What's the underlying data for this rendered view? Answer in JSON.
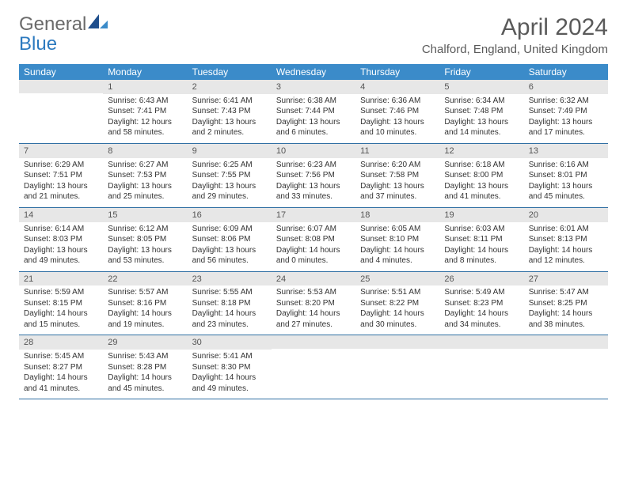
{
  "logo": {
    "line1": "General",
    "line2": "Blue"
  },
  "title": "April 2024",
  "location": "Chalford, England, United Kingdom",
  "colors": {
    "header_bg": "#3b8bc9",
    "header_fg": "#ffffff",
    "daynum_bg": "#e7e7e7",
    "rule": "#2f6fa3",
    "text": "#333333",
    "logo_gray": "#6a6a6a",
    "logo_blue": "#2c7abf"
  },
  "weekdays": [
    "Sunday",
    "Monday",
    "Tuesday",
    "Wednesday",
    "Thursday",
    "Friday",
    "Saturday"
  ],
  "weeks": [
    [
      null,
      {
        "n": "1",
        "sr": "6:43 AM",
        "ss": "7:41 PM",
        "dl": "12 hours and 58 minutes."
      },
      {
        "n": "2",
        "sr": "6:41 AM",
        "ss": "7:43 PM",
        "dl": "13 hours and 2 minutes."
      },
      {
        "n": "3",
        "sr": "6:38 AM",
        "ss": "7:44 PM",
        "dl": "13 hours and 6 minutes."
      },
      {
        "n": "4",
        "sr": "6:36 AM",
        "ss": "7:46 PM",
        "dl": "13 hours and 10 minutes."
      },
      {
        "n": "5",
        "sr": "6:34 AM",
        "ss": "7:48 PM",
        "dl": "13 hours and 14 minutes."
      },
      {
        "n": "6",
        "sr": "6:32 AM",
        "ss": "7:49 PM",
        "dl": "13 hours and 17 minutes."
      }
    ],
    [
      {
        "n": "7",
        "sr": "6:29 AM",
        "ss": "7:51 PM",
        "dl": "13 hours and 21 minutes."
      },
      {
        "n": "8",
        "sr": "6:27 AM",
        "ss": "7:53 PM",
        "dl": "13 hours and 25 minutes."
      },
      {
        "n": "9",
        "sr": "6:25 AM",
        "ss": "7:55 PM",
        "dl": "13 hours and 29 minutes."
      },
      {
        "n": "10",
        "sr": "6:23 AM",
        "ss": "7:56 PM",
        "dl": "13 hours and 33 minutes."
      },
      {
        "n": "11",
        "sr": "6:20 AM",
        "ss": "7:58 PM",
        "dl": "13 hours and 37 minutes."
      },
      {
        "n": "12",
        "sr": "6:18 AM",
        "ss": "8:00 PM",
        "dl": "13 hours and 41 minutes."
      },
      {
        "n": "13",
        "sr": "6:16 AM",
        "ss": "8:01 PM",
        "dl": "13 hours and 45 minutes."
      }
    ],
    [
      {
        "n": "14",
        "sr": "6:14 AM",
        "ss": "8:03 PM",
        "dl": "13 hours and 49 minutes."
      },
      {
        "n": "15",
        "sr": "6:12 AM",
        "ss": "8:05 PM",
        "dl": "13 hours and 53 minutes."
      },
      {
        "n": "16",
        "sr": "6:09 AM",
        "ss": "8:06 PM",
        "dl": "13 hours and 56 minutes."
      },
      {
        "n": "17",
        "sr": "6:07 AM",
        "ss": "8:08 PM",
        "dl": "14 hours and 0 minutes."
      },
      {
        "n": "18",
        "sr": "6:05 AM",
        "ss": "8:10 PM",
        "dl": "14 hours and 4 minutes."
      },
      {
        "n": "19",
        "sr": "6:03 AM",
        "ss": "8:11 PM",
        "dl": "14 hours and 8 minutes."
      },
      {
        "n": "20",
        "sr": "6:01 AM",
        "ss": "8:13 PM",
        "dl": "14 hours and 12 minutes."
      }
    ],
    [
      {
        "n": "21",
        "sr": "5:59 AM",
        "ss": "8:15 PM",
        "dl": "14 hours and 15 minutes."
      },
      {
        "n": "22",
        "sr": "5:57 AM",
        "ss": "8:16 PM",
        "dl": "14 hours and 19 minutes."
      },
      {
        "n": "23",
        "sr": "5:55 AM",
        "ss": "8:18 PM",
        "dl": "14 hours and 23 minutes."
      },
      {
        "n": "24",
        "sr": "5:53 AM",
        "ss": "8:20 PM",
        "dl": "14 hours and 27 minutes."
      },
      {
        "n": "25",
        "sr": "5:51 AM",
        "ss": "8:22 PM",
        "dl": "14 hours and 30 minutes."
      },
      {
        "n": "26",
        "sr": "5:49 AM",
        "ss": "8:23 PM",
        "dl": "14 hours and 34 minutes."
      },
      {
        "n": "27",
        "sr": "5:47 AM",
        "ss": "8:25 PM",
        "dl": "14 hours and 38 minutes."
      }
    ],
    [
      {
        "n": "28",
        "sr": "5:45 AM",
        "ss": "8:27 PM",
        "dl": "14 hours and 41 minutes."
      },
      {
        "n": "29",
        "sr": "5:43 AM",
        "ss": "8:28 PM",
        "dl": "14 hours and 45 minutes."
      },
      {
        "n": "30",
        "sr": "5:41 AM",
        "ss": "8:30 PM",
        "dl": "14 hours and 49 minutes."
      },
      null,
      null,
      null,
      null
    ]
  ],
  "labels": {
    "sunrise": "Sunrise:",
    "sunset": "Sunset:",
    "daylight": "Daylight:"
  }
}
